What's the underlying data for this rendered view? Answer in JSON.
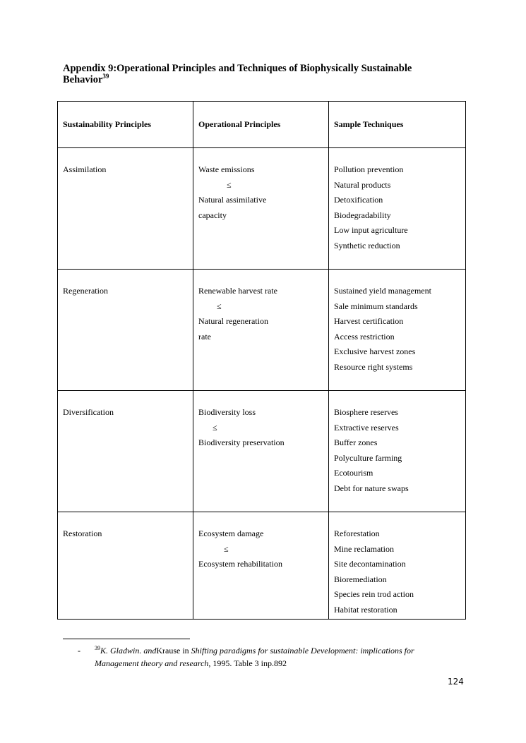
{
  "title": {
    "text": "Appendix 9:Operational Principles and Techniques of Biophysically Sustainable Behavior",
    "footnote_ref": "39"
  },
  "table": {
    "headers": [
      "Sustainability Principles",
      "Operational Principles",
      "Sample Techniques"
    ],
    "rows": [
      {
        "principle": "Assimilation",
        "operational": [
          "Waste emissions",
          "≤",
          "Natural assimilative",
          "capacity"
        ],
        "techniques": [
          "Pollution prevention",
          "Natural products",
          "Detoxification",
          "Biodegradability",
          "Low input agriculture",
          "Synthetic reduction"
        ]
      },
      {
        "principle": "Regeneration",
        "operational": [
          "Renewable harvest rate",
          "≤",
          "Natural regeneration",
          "rate"
        ],
        "techniques": [
          "Sustained yield management",
          "Sale minimum standards",
          "Harvest certification",
          "Access restriction",
          "Exclusive harvest zones",
          "Resource right systems"
        ]
      },
      {
        "principle": "Diversification",
        "operational": [
          "Biodiversity loss",
          "≤",
          "Biodiversity preservation"
        ],
        "techniques": [
          "Biosphere reserves",
          "Extractive reserves",
          "Buffer zones",
          "Polyculture farming",
          "Ecotourism",
          "Debt for nature swaps"
        ]
      },
      {
        "principle": "Restoration",
        "operational": [
          "Ecosystem damage",
          "≤",
          "Ecosystem rehabilitation"
        ],
        "techniques": [
          "Reforestation",
          "Mine reclamation",
          "Site decontamination",
          "Bioremediation",
          "Species rein trod action",
          "Habitat restoration"
        ]
      }
    ]
  },
  "footnote": {
    "bullet": "-",
    "number": "39",
    "authors_italic": "K. Gladwin. and",
    "authors_plain": "Krause in ",
    "work_italic": "Shifting paradigms for sustainable Development: implications for Management theory and research",
    "rest": ", 1995. Table 3 inp.892"
  },
  "page_number": "124"
}
